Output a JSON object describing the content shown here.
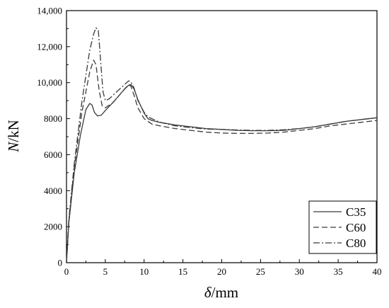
{
  "chart_data": {
    "type": "line",
    "title": "",
    "xlabel_symbol": "δ",
    "xlabel_unit": "/mm",
    "ylabel_symbol": "N",
    "ylabel_unit": "/kN",
    "xlim": [
      0,
      40
    ],
    "ylim": [
      0,
      14000
    ],
    "x_ticks": [
      0,
      5,
      10,
      15,
      20,
      25,
      30,
      35,
      40
    ],
    "x_tick_labels": [
      "0",
      "5",
      "10",
      "15",
      "20",
      "25",
      "30",
      "35",
      "40"
    ],
    "y_ticks": [
      0,
      2000,
      4000,
      6000,
      8000,
      10000,
      12000,
      14000
    ],
    "y_tick_labels": [
      "0",
      "2000",
      "4000",
      "6000",
      "8000",
      "10,000",
      "12,000",
      "14,000"
    ],
    "grid": false,
    "legend_position": "bottom-right",
    "series": [
      {
        "name": "C35",
        "line_style": "solid",
        "color": "#3a3a3a",
        "x": [
          0,
          0.3,
          1,
          1.8,
          2.5,
          3,
          3.3,
          3.6,
          4,
          4.5,
          5,
          6,
          7,
          7.5,
          8,
          8.3,
          8.7,
          9.2,
          10,
          10.5,
          11,
          12,
          14,
          16,
          18,
          20,
          22,
          24,
          26,
          28,
          30,
          32,
          34,
          36,
          38,
          40
        ],
        "y": [
          0,
          2200,
          5000,
          7100,
          8500,
          8850,
          8750,
          8350,
          8150,
          8200,
          8450,
          8900,
          9400,
          9650,
          9850,
          9900,
          9650,
          9050,
          8300,
          8000,
          7900,
          7800,
          7650,
          7550,
          7450,
          7400,
          7350,
          7330,
          7330,
          7350,
          7450,
          7550,
          7700,
          7850,
          7950,
          8050
        ]
      },
      {
        "name": "C60",
        "line_style": "dashed",
        "color": "#3a3a3a",
        "x": [
          0,
          0.3,
          1,
          2,
          3,
          3.5,
          3.8,
          4.2,
          4.6,
          5,
          6,
          7,
          7.5,
          8,
          8.3,
          8.7,
          9.2,
          10,
          11,
          12,
          14,
          16,
          18,
          20,
          22,
          24,
          26,
          28,
          30,
          32,
          34,
          36,
          38,
          40
        ],
        "y": [
          0,
          2300,
          5300,
          8400,
          10600,
          11250,
          11000,
          9600,
          8700,
          8600,
          8900,
          9400,
          9650,
          9900,
          9800,
          9300,
          8600,
          8000,
          7700,
          7600,
          7450,
          7350,
          7250,
          7200,
          7180,
          7180,
          7200,
          7250,
          7350,
          7450,
          7600,
          7700,
          7800,
          7900
        ]
      },
      {
        "name": "C80",
        "line_style": "dashdot",
        "color": "#3a3a3a",
        "x": [
          0,
          0.3,
          1,
          2,
          3,
          3.5,
          3.8,
          4.1,
          4.4,
          4.7,
          5,
          5.5,
          6,
          7,
          7.5,
          8,
          8.3,
          8.7,
          9.2,
          10,
          10.5,
          11,
          12,
          14,
          16,
          18,
          20,
          22,
          24,
          26,
          28,
          30,
          32,
          34,
          36,
          38,
          40
        ],
        "y": [
          0,
          2400,
          5500,
          9000,
          11800,
          12700,
          13050,
          12900,
          11200,
          9500,
          9000,
          9100,
          9300,
          9700,
          9900,
          10100,
          10050,
          9700,
          9000,
          8350,
          8100,
          8000,
          7800,
          7600,
          7500,
          7420,
          7400,
          7370,
          7350,
          7350,
          7380,
          7450,
          7550,
          7700,
          7850,
          7950,
          8050
        ]
      }
    ]
  }
}
